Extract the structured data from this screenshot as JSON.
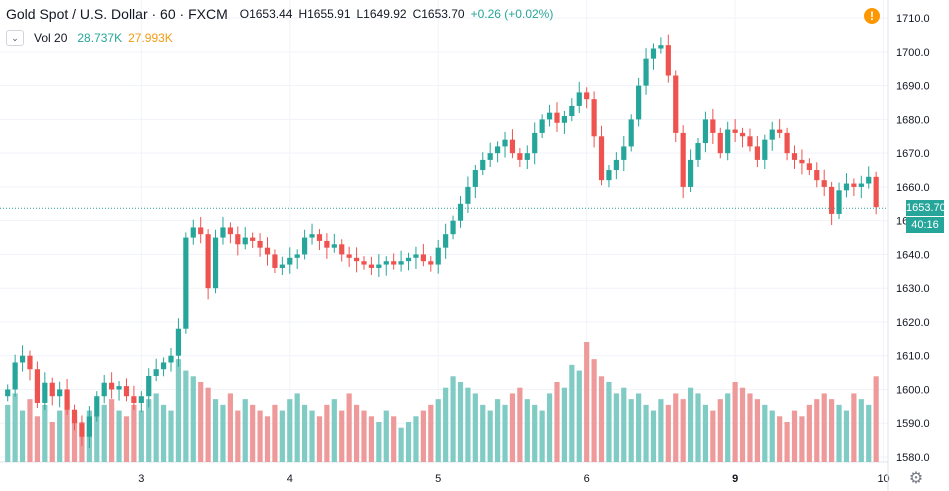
{
  "header": {
    "symbol": "Gold Spot / U.S. Dollar · 60 · FXCM",
    "open": "O1653.44",
    "high": "H1655.91",
    "low": "L1649.92",
    "close": "C1653.70",
    "change": "+0.26 (+0.02%)",
    "alert_icon": "!"
  },
  "volume_legend": {
    "label": "Vol 20",
    "value1": "28.737K",
    "value2": "27.993K",
    "collapse_icon": "chevron-down-icon"
  },
  "price_label": "1653.70",
  "countdown": "40:16",
  "colors": {
    "up": "#26a69a",
    "down": "#ef5350",
    "vol_up": "#80cbc4",
    "vol_down": "#ef9a9a"
  },
  "chart_data": {
    "type": "candlestick",
    "y_ticks": [
      1580,
      1590,
      1600,
      1610,
      1620,
      1630,
      1640,
      1650,
      1660,
      1670,
      1680,
      1690,
      1700,
      1710
    ],
    "ylim": [
      1572,
      1713
    ],
    "x_ticks": [
      "3",
      "4",
      "5",
      "6",
      "9",
      "10"
    ],
    "x_tick_bar_index": [
      18,
      38,
      58,
      78,
      98,
      118
    ],
    "last_price": 1653.7,
    "closes": [
      1600,
      1608,
      1610,
      1606,
      1596,
      1602,
      1598,
      1600,
      1594,
      1590,
      1586,
      1592,
      1598,
      1602,
      1600,
      1601,
      1598,
      1596,
      1598,
      1604,
      1606,
      1608,
      1610,
      1618,
      1645,
      1648,
      1646,
      1630,
      1645,
      1648,
      1646,
      1643,
      1645,
      1644,
      1642,
      1640,
      1636,
      1637,
      1639,
      1640,
      1645,
      1646,
      1644,
      1642,
      1643,
      1640,
      1639,
      1638,
      1637,
      1636,
      1637,
      1638,
      1637,
      1638,
      1639,
      1640,
      1638,
      1637,
      1642,
      1646,
      1650,
      1655,
      1660,
      1665,
      1668,
      1670,
      1672,
      1674,
      1670,
      1668,
      1670,
      1676,
      1680,
      1682,
      1679,
      1681,
      1684,
      1688,
      1686,
      1675,
      1662,
      1665,
      1668,
      1672,
      1680,
      1690,
      1698,
      1701,
      1702,
      1693,
      1676,
      1660,
      1668,
      1673,
      1680,
      1676,
      1670,
      1677,
      1676,
      1675,
      1672,
      1668,
      1674,
      1677,
      1676,
      1670,
      1668,
      1667,
      1665,
      1662,
      1660,
      1652,
      1659,
      1661,
      1660,
      1661,
      1663,
      1654
    ],
    "volumes": [
      10,
      12,
      9,
      11,
      8,
      10,
      7,
      9,
      11,
      8,
      7,
      9,
      8,
      10,
      11,
      9,
      8,
      10,
      9,
      11,
      12,
      10,
      9,
      18,
      16,
      15,
      14,
      13,
      11,
      10,
      12,
      9,
      11,
      10,
      9,
      8,
      10,
      9,
      11,
      12,
      10,
      9,
      8,
      10,
      11,
      9,
      12,
      10,
      9,
      8,
      7,
      9,
      8,
      6,
      7,
      8,
      9,
      10,
      11,
      13,
      15,
      14,
      13,
      12,
      10,
      9,
      11,
      10,
      12,
      13,
      11,
      10,
      9,
      12,
      14,
      13,
      17,
      16,
      21,
      18,
      15,
      14,
      12,
      13,
      11,
      12,
      10,
      9,
      11,
      10,
      12,
      11,
      13,
      12,
      10,
      9,
      11,
      12,
      14,
      13,
      12,
      11,
      10,
      9,
      8,
      7,
      9,
      8,
      10,
      11,
      12,
      11,
      10,
      9,
      12,
      11,
      10,
      15
    ]
  }
}
